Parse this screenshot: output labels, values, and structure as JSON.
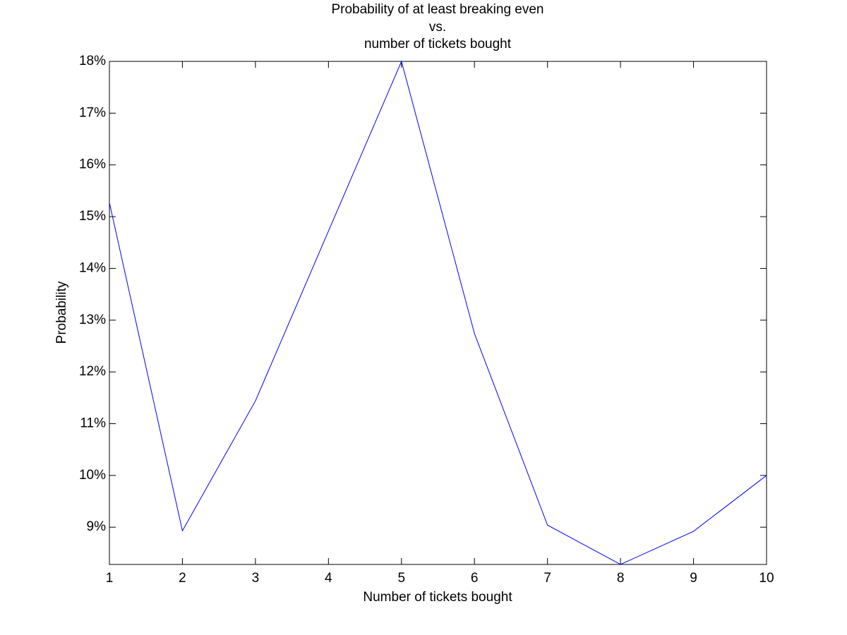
{
  "chart_data": {
    "type": "line",
    "title": [
      "Probability of at least breaking even",
      "vs.",
      "number of tickets bought"
    ],
    "x_label": "Number of tickets bought",
    "y_label": "Probability",
    "x": [
      1,
      2,
      3,
      4,
      5,
      6,
      7,
      8,
      9,
      10
    ],
    "series": [
      {
        "color": "#0000ff",
        "values": [
          15.27,
          8.93,
          11.44,
          14.72,
          18.0,
          12.74,
          9.04,
          8.28,
          8.92,
          10.0
        ]
      }
    ],
    "xlim": [
      1,
      10
    ],
    "ylim": [
      8.28,
      18
    ],
    "xticks": [
      1,
      2,
      3,
      4,
      5,
      6,
      7,
      8,
      9,
      10
    ],
    "yticks": [
      {
        "value": 9,
        "label": "9%"
      },
      {
        "value": 10,
        "label": "10%"
      },
      {
        "value": 11,
        "label": "11%"
      },
      {
        "value": 12,
        "label": "12%"
      },
      {
        "value": 13,
        "label": "13%"
      },
      {
        "value": 14,
        "label": "14%"
      },
      {
        "value": 15,
        "label": "15%"
      },
      {
        "value": 16,
        "label": "16%"
      },
      {
        "value": 17,
        "label": "17%"
      },
      {
        "value": 18,
        "label": "18%"
      }
    ],
    "grid": false
  }
}
